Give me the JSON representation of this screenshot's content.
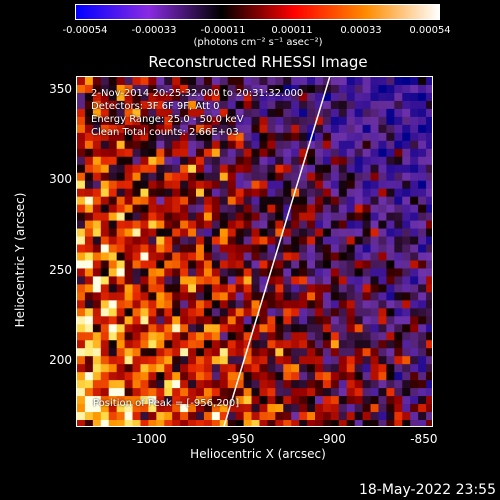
{
  "chart_data": {
    "type": "heatmap",
    "title": "Reconstructed RHESSI Image",
    "xlabel": "Heliocentric X (arcsec)",
    "ylabel": "Heliocentric Y (arcsec)",
    "xlim": [
      -1040,
      -845
    ],
    "ylim": [
      163,
      357
    ],
    "x_ticks": [
      "-1000",
      "-950",
      "-900",
      "-850"
    ],
    "x_tick_values": [
      -1000,
      -950,
      -900,
      -850
    ],
    "y_ticks": [
      "200",
      "250",
      "300",
      "350"
    ],
    "y_tick_values": [
      200,
      250,
      300,
      350
    ],
    "colorbar": {
      "ticks": [
        "-0.00054",
        "-0.00033",
        "-0.00011",
        "0.00011",
        "0.00033",
        "0.00054"
      ],
      "unit_label": "(photons cm⁻² s⁻¹ asec⁻²)",
      "range": [
        -0.00054,
        0.00054
      ]
    },
    "annotations": {
      "time_range": "2-Nov-2014 20:25:32.000 to 20:31:32.000",
      "detectors": "Detectors: 3F 6F 9F, Att 0",
      "energy_range": "Energy Range: 25.0 - 50.0 keV",
      "clean_counts": "Clean    Total counts: 2.66E+03",
      "peak_position": "Position of Peak = [-956,200]"
    },
    "limb_line": [
      [
        -960,
        163
      ],
      [
        -902,
        357
      ]
    ]
  },
  "timestamp": "18-May-2022 23:55",
  "colors": {
    "negative": "#0000ff",
    "mid_negative": "#8a2be2",
    "zero": "#000000",
    "positive": "#ff0000",
    "mid_positive": "#ff8c00",
    "max": "#ffffff"
  }
}
